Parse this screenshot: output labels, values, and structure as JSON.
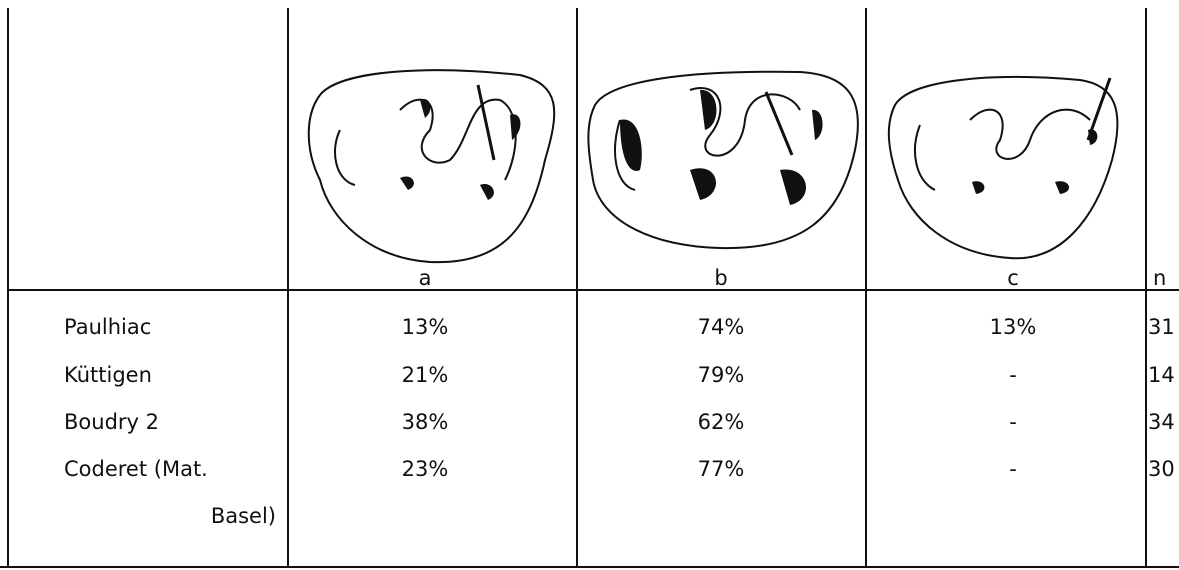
{
  "table": {
    "columns": [
      "a",
      "b",
      "c",
      "n"
    ],
    "rows": [
      {
        "label": "Paulhiac",
        "cells": [
          "13%",
          "74%",
          "13%",
          "31"
        ]
      },
      {
        "label": "Küttigen",
        "cells": [
          "21%",
          "79%",
          "-",
          "14"
        ]
      },
      {
        "label": "Boudry 2",
        "cells": [
          "38%",
          "62%",
          "-",
          "34"
        ]
      },
      {
        "label": [
          "Coderet (Mat.",
          "Basel)"
        ],
        "cells": [
          "23%",
          "77%",
          "-",
          "30"
        ]
      }
    ]
  }
}
